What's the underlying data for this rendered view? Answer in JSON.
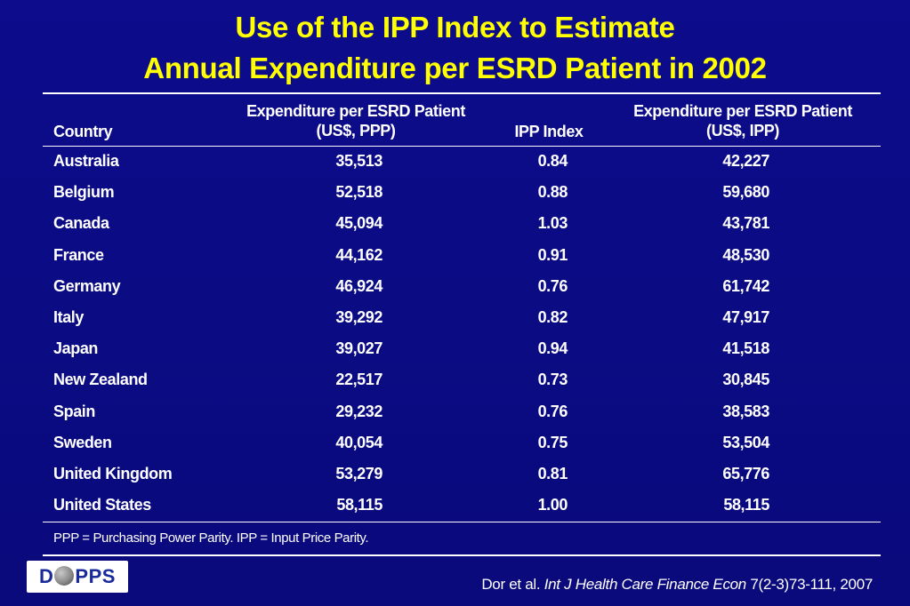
{
  "title": {
    "line1": "Use of the IPP Index to Estimate",
    "line2": "Annual Expenditure per ESRD Patient in 2002"
  },
  "table": {
    "headers": {
      "country": "Country",
      "exp_ppp_line1": "Expenditure per ESRD Patient",
      "exp_ppp_line2": "(US$, PPP)",
      "ipp": "IPP Index",
      "exp_ipp_line1": "Expenditure per ESRD Patient",
      "exp_ipp_line2": "(US$, IPP)"
    },
    "rows": [
      {
        "country": "Australia",
        "exp_ppp": "35,513",
        "ipp": "0.84",
        "exp_ipp": "42,227"
      },
      {
        "country": "Belgium",
        "exp_ppp": "52,518",
        "ipp": "0.88",
        "exp_ipp": "59,680"
      },
      {
        "country": "Canada",
        "exp_ppp": "45,094",
        "ipp": "1.03",
        "exp_ipp": "43,781"
      },
      {
        "country": "France",
        "exp_ppp": "44,162",
        "ipp": "0.91",
        "exp_ipp": "48,530"
      },
      {
        "country": "Germany",
        "exp_ppp": "46,924",
        "ipp": "0.76",
        "exp_ipp": "61,742"
      },
      {
        "country": "Italy",
        "exp_ppp": "39,292",
        "ipp": "0.82",
        "exp_ipp": "47,917"
      },
      {
        "country": "Japan",
        "exp_ppp": "39,027",
        "ipp": "0.94",
        "exp_ipp": "41,518"
      },
      {
        "country": "New Zealand",
        "exp_ppp": "22,517",
        "ipp": "0.73",
        "exp_ipp": "30,845"
      },
      {
        "country": "Spain",
        "exp_ppp": "29,232",
        "ipp": "0.76",
        "exp_ipp": "38,583"
      },
      {
        "country": "Sweden",
        "exp_ppp": "40,054",
        "ipp": "0.75",
        "exp_ipp": "53,504"
      },
      {
        "country": "United Kingdom",
        "exp_ppp": "53,279",
        "ipp": "0.81",
        "exp_ipp": "65,776"
      },
      {
        "country": "United States",
        "exp_ppp": "58,115",
        "ipp": "1.00",
        "exp_ipp": "58,115"
      }
    ]
  },
  "footnote": "PPP = Purchasing Power Parity.  IPP = Input Price Parity.",
  "logo": {
    "text_before": "D",
    "text_after": "PPS",
    "icon": "globe-icon"
  },
  "citation": {
    "authors": "Dor et al. ",
    "journal": "Int J Health Care Finance Econ",
    "details": " 7(2-3)73-111, 2007"
  },
  "colors": {
    "background": "#0b0b82",
    "title": "#ffff00",
    "text": "#ffffff"
  }
}
